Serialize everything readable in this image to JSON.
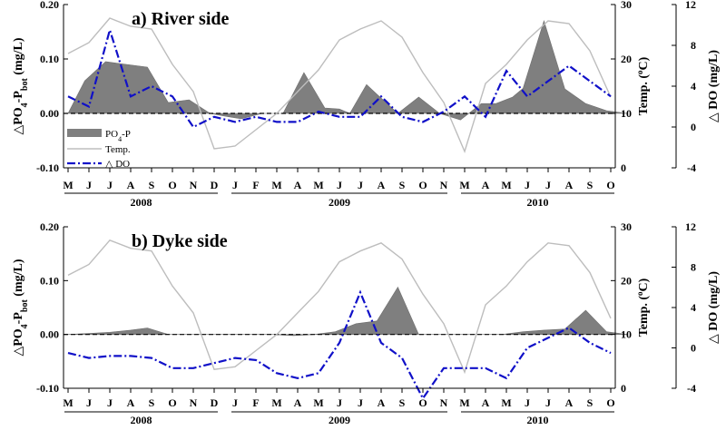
{
  "chart_data": [
    {
      "type": "area",
      "title": "a) River side",
      "ylabel_left": "△PO4-Pbot (mg/L)",
      "ylabel_right1": "Temp. (oC)",
      "ylabel_right2": "△ DO (mg/L)",
      "ylim_left": [
        -0.1,
        0.2
      ],
      "left_ticks": [
        "-0.10",
        "0.00",
        "0.10",
        "0.20"
      ],
      "ylim_temp": [
        0,
        30
      ],
      "temp_ticks": [
        "0",
        "10",
        "20",
        "30"
      ],
      "ylim_do": [
        -4,
        12
      ],
      "do_ticks": [
        "-4",
        "0",
        "4",
        "8",
        "12"
      ],
      "months": [
        "M",
        "J",
        "J",
        "A",
        "S",
        "O",
        "N",
        "D",
        "J",
        "F",
        "M",
        "A",
        "M",
        "J",
        "J",
        "A",
        "S",
        "O",
        "N",
        "M",
        "A",
        "M",
        "J",
        "J",
        "A",
        "S",
        "O"
      ],
      "years": [
        "2008",
        "2009",
        "2010"
      ],
      "legend": [
        "PO4-P",
        "Temp.",
        "△ DO"
      ],
      "series": [
        {
          "name": "PO4-P",
          "x": [
            0,
            0.8,
            1.8,
            2.8,
            3.8,
            4.8,
            5.8,
            6.8,
            7.5,
            8.3,
            9.3,
            10.3,
            11.3,
            12.3,
            13,
            13.5,
            14.3,
            14.8,
            15.8,
            16.8,
            17.8,
            18.8,
            19.8,
            20.5,
            21.3,
            21.8,
            22.8,
            23.8,
            24.8,
            25.8,
            26.8
          ],
          "values": [
            0,
            0.06,
            0.095,
            0.09,
            0.085,
            0.02,
            0.025,
            0,
            -0.005,
            -0.01,
            0,
            0,
            0.075,
            0.01,
            0.008,
            0,
            0.053,
            0.035,
            0,
            0.03,
            0,
            -0.012,
            0.018,
            0.018,
            0.03,
            0.046,
            0.17,
            0.045,
            0.018,
            0.005,
            0
          ]
        },
        {
          "name": "Temp.",
          "values": [
            21,
            23,
            27.5,
            26,
            25.5,
            19,
            14,
            3.5,
            4,
            7,
            10,
            14,
            18,
            23.5,
            25.5,
            27,
            24,
            17.5,
            12,
            3,
            15.5,
            19,
            23.5,
            27,
            26.5,
            21.5,
            13
          ]
        },
        {
          "name": "△ DO",
          "values": [
            3,
            2,
            9.5,
            3,
            4,
            3,
            0,
            1,
            0.5,
            1,
            0.5,
            0.5,
            1.5,
            1,
            1,
            3,
            1,
            0.5,
            1.5,
            3,
            1,
            5.5,
            3,
            4.5,
            6,
            4.5,
            3
          ]
        }
      ]
    },
    {
      "type": "area",
      "title": "b) Dyke side",
      "ylabel_left": "△PO4-Pbot (mg/L)",
      "ylabel_right1": "Temp. (oC)",
      "ylabel_right2": "△ DO (mg/L)",
      "ylim_left": [
        -0.1,
        0.2
      ],
      "left_ticks": [
        "-0.10",
        "0.00",
        "0.10",
        "0.20"
      ],
      "ylim_temp": [
        0,
        30
      ],
      "temp_ticks": [
        "0",
        "10",
        "20",
        "30"
      ],
      "ylim_do": [
        -4,
        12
      ],
      "do_ticks": [
        "-4",
        "0",
        "4",
        "8",
        "12"
      ],
      "months": [
        "M",
        "J",
        "J",
        "A",
        "S",
        "O",
        "N",
        "D",
        "J",
        "F",
        "M",
        "A",
        "M",
        "J",
        "J",
        "A",
        "S",
        "O",
        "N",
        "M",
        "A",
        "M",
        "J",
        "J",
        "A",
        "S",
        "O"
      ],
      "years": [
        "2008",
        "2009",
        "2010"
      ],
      "series": [
        {
          "name": "PO4-P",
          "x": [
            0,
            1,
            2,
            3,
            3.8,
            4.8,
            5.8,
            6.8,
            7.8,
            8.8,
            9.8,
            10.8,
            11.8,
            12.8,
            13.8,
            14.8,
            15.8,
            16.8,
            17.8,
            18.8,
            19.8,
            20.8,
            21.8,
            22.8,
            23.8,
            24.8,
            25.8,
            26.8
          ],
          "values": [
            0,
            0.002,
            0.004,
            0.008,
            0.012,
            0,
            0,
            0,
            0,
            0,
            0,
            -0.002,
            0,
            0.005,
            0.02,
            0.025,
            0.088,
            0,
            0,
            0,
            0,
            0,
            0.005,
            0.008,
            0.01,
            0.045,
            0.005,
            0
          ]
        },
        {
          "name": "Temp.",
          "values": [
            21,
            23,
            27.5,
            26,
            25.5,
            19,
            14,
            3.5,
            4,
            7,
            10,
            14,
            18,
            23.5,
            25.5,
            27,
            24,
            17.5,
            12,
            3,
            15.5,
            19,
            23.5,
            27,
            26.5,
            21.5,
            13
          ]
        },
        {
          "name": "△ DO",
          "values": [
            -0.5,
            -1,
            -0.8,
            -0.8,
            -1,
            -2,
            -2,
            -1.5,
            -1,
            -1.2,
            -2.5,
            -3,
            -2.5,
            0.5,
            5.5,
            0.5,
            -1,
            -5,
            -2,
            -2,
            -2,
            -3,
            0,
            1,
            2,
            0.5,
            -0.5
          ]
        }
      ]
    }
  ]
}
